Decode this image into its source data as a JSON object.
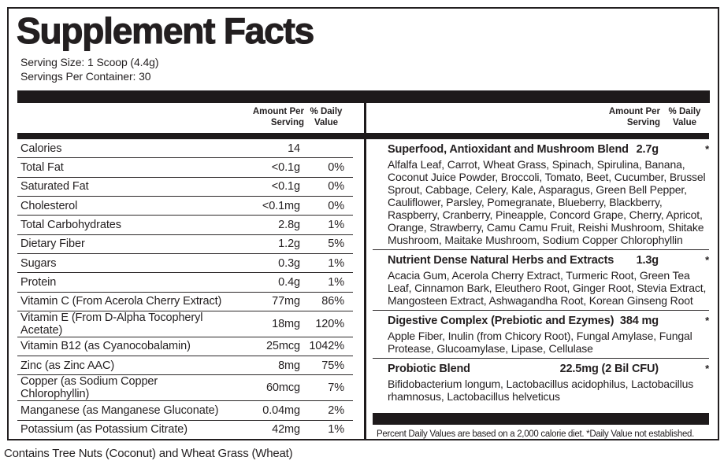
{
  "colors": {
    "ink": "#231f20",
    "bar": "#1e1a1b",
    "background": "#ffffff"
  },
  "header": {
    "title": "Supplement Facts",
    "serving_size": "Serving Size: 1 Scoop (4.4g)",
    "servings_per_container": "Servings Per Container: 30"
  },
  "table_headers": {
    "amount_line1": "Amount Per",
    "amount_line2": "Serving",
    "dv_line1": "% Daily",
    "dv_line2": "Value"
  },
  "nutrients": [
    {
      "name": "Calories",
      "amount": "14",
      "dv": ""
    },
    {
      "name": "Total Fat",
      "amount": "<0.1g",
      "dv": "0%"
    },
    {
      "name": "Saturated Fat",
      "amount": "<0.1g",
      "dv": "0%"
    },
    {
      "name": "Cholesterol",
      "amount": "<0.1mg",
      "dv": "0%"
    },
    {
      "name": "Total Carbohydrates",
      "amount": "2.8g",
      "dv": "1%"
    },
    {
      "name": "Dietary Fiber",
      "amount": "1.2g",
      "dv": "5%"
    },
    {
      "name": "Sugars",
      "amount": "0.3g",
      "dv": "1%"
    },
    {
      "name": "Protein",
      "amount": "0.4g",
      "dv": "1%"
    },
    {
      "name": "Vitamin C (From Acerola Cherry Extract)",
      "amount": "77mg",
      "dv": "86%"
    },
    {
      "name": "Vitamin E (From D-Alpha Tocopheryl Acetate)",
      "amount": "18mg",
      "dv": "120%"
    },
    {
      "name": "Vitamin B12 (as Cyanocobalamin)",
      "amount": "25mcg",
      "dv": "1042%"
    },
    {
      "name": "Zinc (as Zinc AAC)",
      "amount": "8mg",
      "dv": "75%"
    },
    {
      "name": "Copper (as Sodium Copper Chlorophyllin)",
      "amount": "60mcg",
      "dv": "7%"
    },
    {
      "name": "Manganese (as Manganese Gluconate)",
      "amount": "0.04mg",
      "dv": "2%"
    },
    {
      "name": "Potassium (as Potassium Citrate)",
      "amount": "42mg",
      "dv": "1%"
    }
  ],
  "blends": [
    {
      "name": "Superfood, Antioxidant and Mushroom Blend",
      "amount": "2.7g",
      "dv": "*",
      "ingredients": "Alfalfa Leaf, Carrot, Wheat Grass, Spinach, Spirulina, Banana, Coconut Juice Powder, Broccoli, Tomato, Beet, Cucumber, Brussel Sprout, Cabbage, Celery, Kale, Asparagus, Green Bell Pepper, Cauliflower, Parsley, Pomegranate, Blueberry, Blackberry, Raspberry, Cranberry, Pineapple, Concord Grape, Cherry, Apricot, Orange, Strawberry, Camu Camu Fruit, Reishi Mushroom, Shitake Mushroom, Maitake Mushroom, Sodium Copper Chlorophyllin"
    },
    {
      "name": "Nutrient Dense Natural Herbs and Extracts",
      "amount": "1.3g",
      "dv": "*",
      "ingredients": "Acacia Gum, Acerola Cherry Extract, Turmeric Root, Green Tea Leaf, Cinnamon Bark, Eleuthero Root, Ginger Root, Stevia Extract, Mangosteen Extract, Ashwagandha Root, Korean Ginseng Root"
    },
    {
      "name": "Digestive Complex (Prebiotic and Ezymes)",
      "amount": "384 mg",
      "dv": "*",
      "ingredients": "Apple Fiber, Inulin (from Chicory Root), Fungal Amylase, Fungal Protease, Glucoamylase, Lipase, Cellulase"
    },
    {
      "name": "Probiotic Blend",
      "amount": "22.5mg (2 Bil CFU)",
      "dv": "*",
      "ingredients": "Bifidobacterium longum, Lactobacillus acidophilus, Lactobacillus rhamnosus, Lactobacillus helveticus"
    }
  ],
  "footnotes": {
    "daily_value": "Percent Daily Values are based on a 2,000 calorie diet. *Daily Value not established.",
    "allergen": "Contains Tree Nuts (Coconut) and Wheat Grass (Wheat)"
  }
}
